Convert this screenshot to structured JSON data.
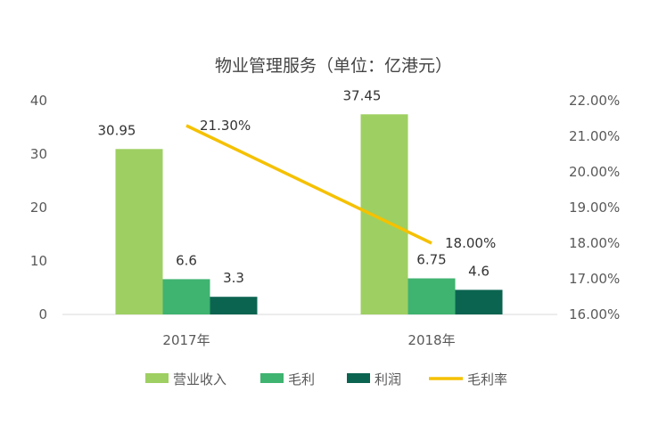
{
  "chart_data": {
    "type": "bar",
    "title": "物业管理服务（单位：亿港元）",
    "categories": [
      "2017年",
      "2018年"
    ],
    "series": [
      {
        "name": "营业收入",
        "kind": "bar",
        "axis": "left",
        "color": "#9ecf62",
        "values": [
          30.95,
          37.45
        ],
        "labels": [
          "30.95",
          "37.45"
        ]
      },
      {
        "name": "毛利",
        "kind": "bar",
        "axis": "left",
        "color": "#3fb370",
        "values": [
          6.6,
          6.75
        ],
        "labels": [
          "6.6",
          "6.75"
        ]
      },
      {
        "name": "利润",
        "kind": "bar",
        "axis": "left",
        "color": "#0b6450",
        "values": [
          3.3,
          4.6
        ],
        "labels": [
          "3.3",
          "4.6"
        ]
      },
      {
        "name": "毛利率",
        "kind": "line",
        "axis": "right",
        "color": "#f5c100",
        "values": [
          21.3,
          18.0
        ],
        "labels": [
          "21.30%",
          "18.00%"
        ]
      }
    ],
    "y_left": {
      "min": 0,
      "max": 40,
      "ticks": [
        "0",
        "10",
        "20",
        "30",
        "40"
      ]
    },
    "y_right": {
      "min": 16,
      "max": 22,
      "ticks": [
        "16.00%",
        "17.00%",
        "18.00%",
        "19.00%",
        "20.00%",
        "21.00%",
        "22.00%"
      ]
    },
    "legend_position": "bottom",
    "grid": false
  }
}
